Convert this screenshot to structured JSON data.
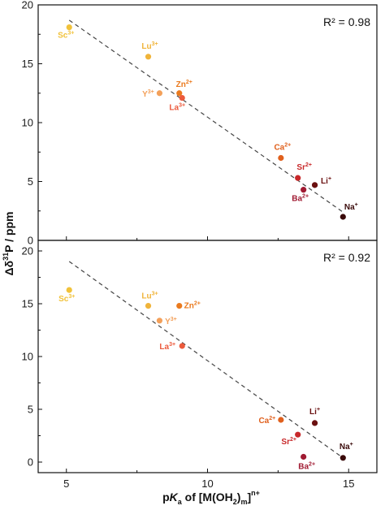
{
  "chart_data": [
    {
      "type": "scatter",
      "r2": "R² = 0.98",
      "xlim": [
        4,
        16
      ],
      "ylim": [
        0,
        20
      ],
      "xticks": [
        5,
        10,
        15
      ],
      "yticks": [
        0,
        5,
        10,
        15,
        20
      ],
      "fit_line": {
        "x": [
          5.1,
          14.8
        ],
        "y": [
          18.7,
          2.4
        ]
      },
      "points": [
        {
          "ion": "Sc",
          "charge": "3+",
          "x": 5.1,
          "y": 18.1,
          "color": "#f1c23a"
        },
        {
          "ion": "Lu",
          "charge": "3+",
          "x": 7.9,
          "y": 15.6,
          "color": "#f0b43a"
        },
        {
          "ion": "Y",
          "charge": "3+",
          "x": 8.3,
          "y": 12.5,
          "color": "#f3a05a"
        },
        {
          "ion": "Zn",
          "charge": "2+",
          "x": 9.0,
          "y": 12.5,
          "color": "#ea7a1e"
        },
        {
          "ion": "La",
          "charge": "3+",
          "x": 9.1,
          "y": 12.1,
          "color": "#ec5a3c"
        },
        {
          "ion": "Ca",
          "charge": "2+",
          "x": 12.6,
          "y": 7.0,
          "color": "#e0601d"
        },
        {
          "ion": "Sr",
          "charge": "2+",
          "x": 13.2,
          "y": 5.3,
          "color": "#c8282a"
        },
        {
          "ion": "Li",
          "charge": "+",
          "x": 13.8,
          "y": 4.7,
          "color": "#6a1010"
        },
        {
          "ion": "Ba",
          "charge": "2+",
          "x": 13.4,
          "y": 4.3,
          "color": "#a01a32"
        },
        {
          "ion": "Na",
          "charge": "+",
          "x": 14.8,
          "y": 2.0,
          "color": "#3a0a0a"
        }
      ]
    },
    {
      "type": "scatter",
      "r2": "R² = 0.92",
      "xlim": [
        4,
        16
      ],
      "ylim": [
        -1,
        21
      ],
      "xticks": [
        5,
        10,
        15
      ],
      "yticks": [
        0,
        5,
        10,
        15,
        20
      ],
      "fit_line": {
        "x": [
          5.1,
          14.8
        ],
        "y": [
          19.0,
          0.4
        ]
      },
      "points": [
        {
          "ion": "Sc",
          "charge": "3+",
          "x": 5.1,
          "y": 16.3,
          "color": "#f1c23a"
        },
        {
          "ion": "Lu",
          "charge": "3+",
          "x": 7.9,
          "y": 14.8,
          "color": "#f0b43a"
        },
        {
          "ion": "Zn",
          "charge": "2+",
          "x": 9.0,
          "y": 14.8,
          "color": "#ea7a1e"
        },
        {
          "ion": "Y",
          "charge": "3+",
          "x": 8.3,
          "y": 13.4,
          "color": "#f3a05a"
        },
        {
          "ion": "La",
          "charge": "3+",
          "x": 9.1,
          "y": 11.0,
          "color": "#ec5a3c"
        },
        {
          "ion": "Ca",
          "charge": "2+",
          "x": 12.6,
          "y": 4.0,
          "color": "#e0601d"
        },
        {
          "ion": "Li",
          "charge": "+",
          "x": 13.8,
          "y": 3.7,
          "color": "#6a1010"
        },
        {
          "ion": "Sr",
          "charge": "2+",
          "x": 13.2,
          "y": 2.6,
          "color": "#c8282a"
        },
        {
          "ion": "Ba",
          "charge": "2+",
          "x": 13.4,
          "y": 0.5,
          "color": "#a01a32"
        },
        {
          "ion": "Na",
          "charge": "+",
          "x": 14.8,
          "y": 0.4,
          "color": "#3a0a0a"
        }
      ]
    }
  ],
  "axes": {
    "ylabel_prefix": "Δδ",
    "ylabel_sup": "31",
    "ylabel_main": "P / ppm",
    "xlabel_p": "p",
    "xlabel_k": "K",
    "xlabel_a": "a",
    "xlabel_of": " of [M(OH",
    "xlabel_2": "2",
    "xlabel_close": ")",
    "xlabel_m": "m",
    "xlabel_bracket": "]",
    "xlabel_sup": "n+"
  }
}
